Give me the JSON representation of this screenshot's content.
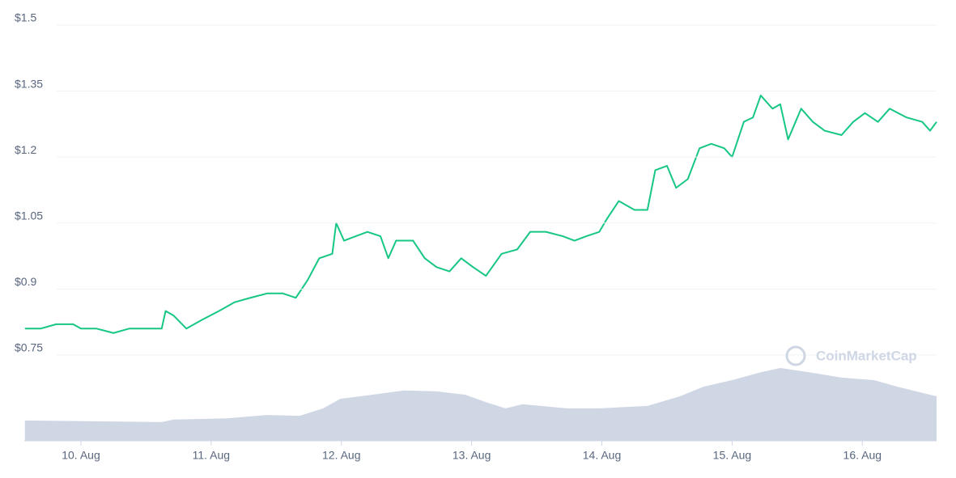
{
  "watermark": "CoinMarketCap",
  "chart_data": [
    {
      "type": "line",
      "color": "#16c784",
      "grid": true,
      "x": [
        9.57,
        9.69,
        9.81,
        9.94,
        10.0,
        10.12,
        10.25,
        10.37,
        10.5,
        10.62,
        10.65,
        10.71,
        10.81,
        10.93,
        11.06,
        11.18,
        11.3,
        11.43,
        11.55,
        11.65,
        11.74,
        11.83,
        11.93,
        11.96,
        12.02,
        12.11,
        12.2,
        12.3,
        12.36,
        12.42,
        12.55,
        12.64,
        12.73,
        12.83,
        12.92,
        13.01,
        13.11,
        13.23,
        13.35,
        13.45,
        13.57,
        13.7,
        13.79,
        13.88,
        13.98,
        14.04,
        14.13,
        14.25,
        14.35,
        14.41,
        14.5,
        14.57,
        14.66,
        14.75,
        14.84,
        14.94,
        15.0,
        15.09,
        15.16,
        15.22,
        15.31,
        15.37,
        15.43,
        15.53,
        15.62,
        15.71,
        15.84,
        15.93,
        16.02,
        16.12,
        16.21,
        16.34,
        16.46,
        16.52,
        16.57
      ],
      "values": [
        0.81,
        0.81,
        0.82,
        0.82,
        0.81,
        0.81,
        0.8,
        0.81,
        0.81,
        0.81,
        0.85,
        0.84,
        0.81,
        0.83,
        0.85,
        0.87,
        0.88,
        0.89,
        0.89,
        0.88,
        0.92,
        0.97,
        0.98,
        1.05,
        1.01,
        1.02,
        1.03,
        1.02,
        0.97,
        1.01,
        1.01,
        0.97,
        0.95,
        0.94,
        0.97,
        0.95,
        0.93,
        0.98,
        0.99,
        1.03,
        1.03,
        1.02,
        1.01,
        1.02,
        1.03,
        1.06,
        1.1,
        1.08,
        1.08,
        1.17,
        1.18,
        1.13,
        1.15,
        1.22,
        1.23,
        1.22,
        1.2,
        1.28,
        1.29,
        1.34,
        1.31,
        1.32,
        1.24,
        1.31,
        1.28,
        1.26,
        1.25,
        1.28,
        1.3,
        1.28,
        1.31,
        1.29,
        1.28,
        1.26,
        1.28
      ],
      "xlim": [
        9.565,
        16.57
      ],
      "ylim": [
        0.555,
        1.5
      ],
      "yticks": [
        {
          "value": 0.75,
          "label": "$0.75"
        },
        {
          "value": 0.9,
          "label": "$0.9"
        },
        {
          "value": 1.05,
          "label": "$1.05"
        },
        {
          "value": 1.2,
          "label": "$1.2"
        },
        {
          "value": 1.35,
          "label": "$1.35"
        },
        {
          "value": 1.5,
          "label": "$1.5"
        }
      ],
      "xticks": [
        {
          "value": 10,
          "label": "10. Aug"
        },
        {
          "value": 11,
          "label": "11. Aug"
        },
        {
          "value": 12,
          "label": "12. Aug"
        },
        {
          "value": 13,
          "label": "13. Aug"
        },
        {
          "value": 14,
          "label": "14. Aug"
        },
        {
          "value": 15,
          "label": "15. Aug"
        },
        {
          "value": 16,
          "label": "16. Aug"
        }
      ]
    },
    {
      "type": "area",
      "color": "#cfd6e4",
      "x": [
        9.57,
        10.62,
        10.71,
        11.12,
        11.43,
        11.68,
        11.86,
        11.99,
        12.24,
        12.48,
        12.73,
        12.95,
        13.11,
        13.26,
        13.39,
        13.73,
        13.98,
        14.35,
        14.6,
        14.78,
        15.0,
        15.22,
        15.37,
        15.59,
        15.84,
        16.09,
        16.27,
        16.57
      ],
      "values": [
        4.9,
        4.5,
        5.1,
        5.4,
        6.2,
        6.0,
        7.8,
        10.1,
        11.1,
        12.1,
        11.9,
        11.1,
        9.3,
        7.8,
        8.8,
        7.8,
        7.8,
        8.4,
        10.7,
        13.0,
        14.6,
        16.5,
        17.5,
        16.5,
        15.2,
        14.6,
        13.0,
        10.7
      ],
      "xlim": [
        9.565,
        16.57
      ],
      "ylim": [
        0,
        100
      ]
    }
  ]
}
